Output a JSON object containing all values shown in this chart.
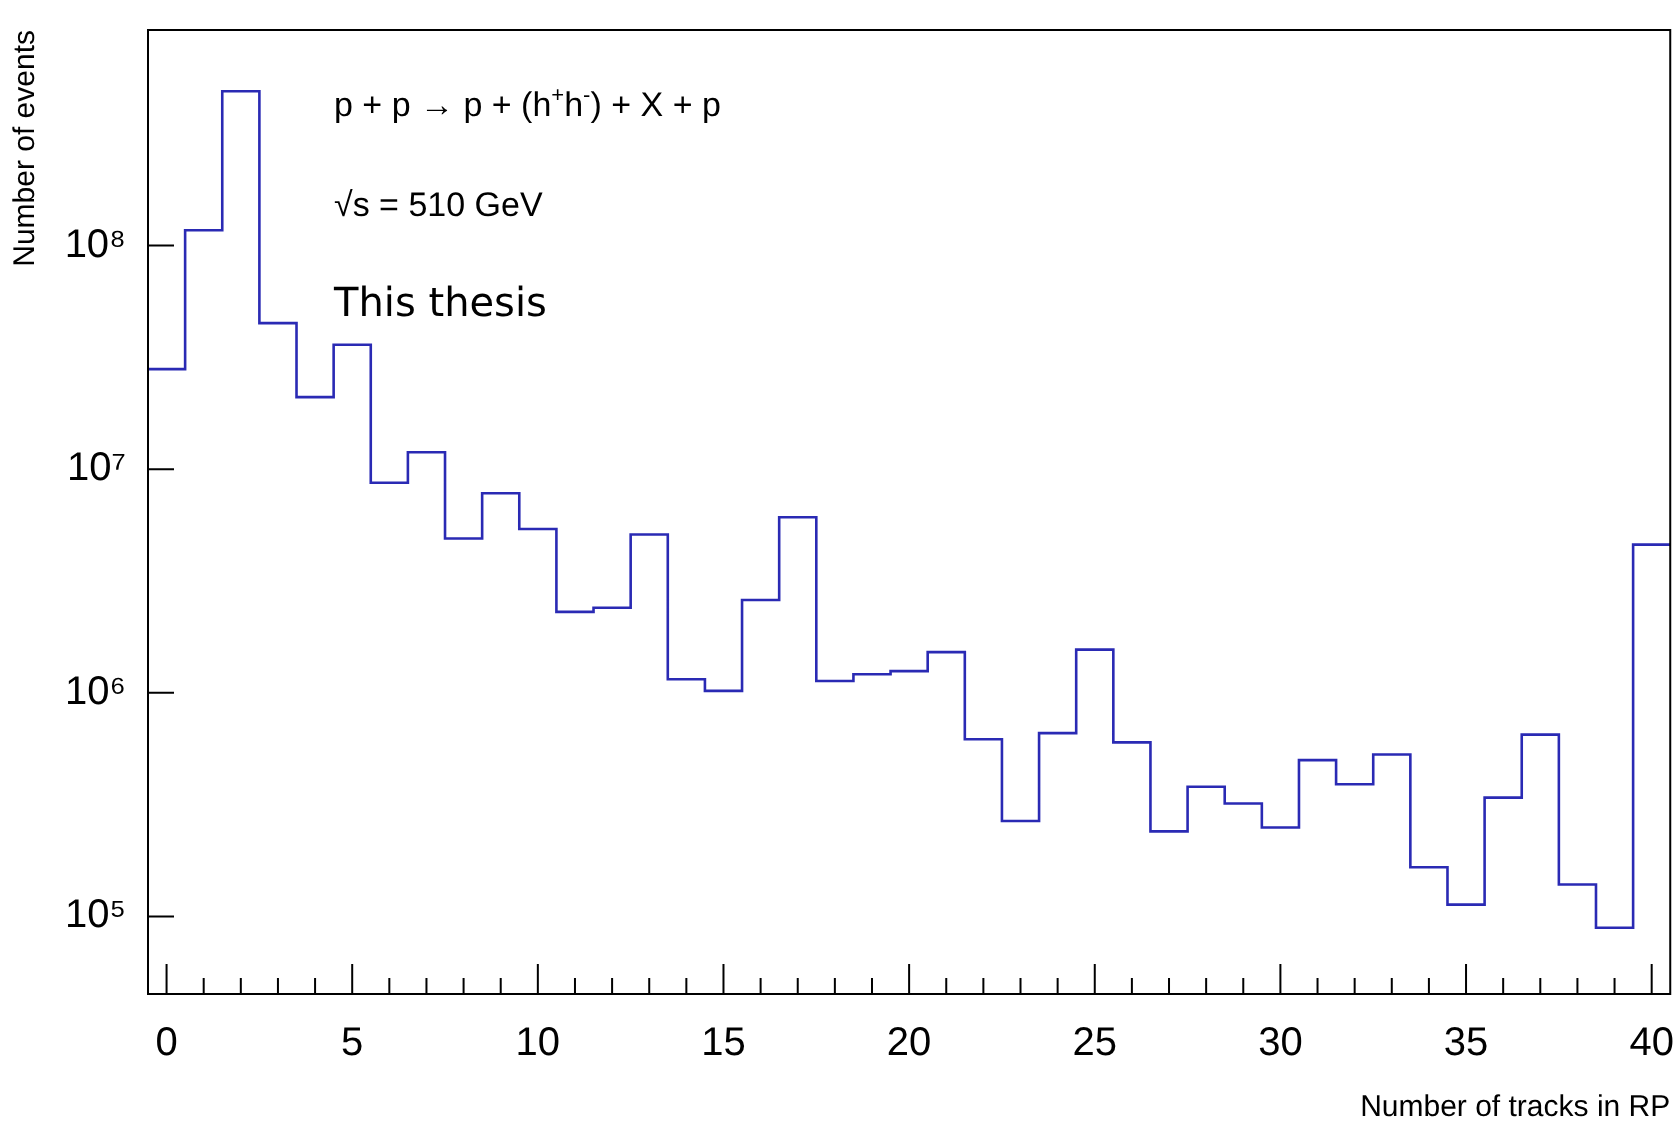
{
  "chart_data": {
    "type": "histogram",
    "xlabel": "Number of tracks in RP",
    "ylabel": "Number of events",
    "annotations": [
      "p + p → p + (h$^{+}$h$^{-}$) + X + p",
      "√s = 510 GeV",
      "This thesis"
    ],
    "bins": [
      -0.5,
      0.5,
      1.5,
      2.5,
      3.5,
      4.5,
      5.5,
      6.5,
      7.5,
      8.5,
      9.5,
      10.5,
      11.5,
      12.5,
      13.5,
      14.5,
      15.5,
      16.5,
      17.5,
      18.5,
      19.5,
      20.5,
      21.5,
      22.5,
      23.5,
      24.5,
      25.5,
      26.5,
      27.5,
      28.5,
      29.5,
      30.5,
      31.5,
      32.5,
      33.5,
      34.5,
      35.5,
      36.5,
      37.5,
      38.5,
      39.5,
      40.5
    ],
    "values": [
      28000000,
      117000000,
      490000000,
      45000000,
      21000000,
      36000000,
      8700000,
      11900000,
      4900000,
      7800000,
      5400000,
      2300000,
      2400000,
      5100000,
      1150000,
      1020000,
      2600000,
      6100000,
      1130000,
      1210000,
      1250000,
      1520000,
      620000,
      267000,
      660000,
      1560000,
      600000,
      240000,
      380000,
      320000,
      250000,
      500000,
      390000,
      530000,
      166000,
      113000,
      340000,
      650000,
      139000,
      89000,
      4600000
    ],
    "color": "#2a2ab4",
    "log": "y",
    "xlim": [
      -0.5,
      40.5
    ],
    "ylim": [
      45000,
      920000000
    ],
    "xticks": [
      0,
      {
        "value": 1,
        "label": null
      },
      {
        "value": 2,
        "label": null
      },
      {
        "value": 3,
        "label": null
      },
      {
        "value": 4,
        "label": null
      },
      5,
      {
        "value": 6,
        "label": null
      },
      {
        "value": 7,
        "label": null
      },
      {
        "value": 8,
        "label": null
      },
      {
        "value": 9,
        "label": null
      },
      10,
      {
        "value": 11,
        "label": null
      },
      {
        "value": 12,
        "label": null
      },
      {
        "value": 13,
        "label": null
      },
      {
        "value": 14,
        "label": null
      },
      15,
      {
        "value": 16,
        "label": null
      },
      {
        "value": 17,
        "label": null
      },
      {
        "value": 18,
        "label": null
      },
      {
        "value": 19,
        "label": null
      },
      20,
      {
        "value": 21,
        "label": null
      },
      {
        "value": 22,
        "label": null
      },
      {
        "value": 23,
        "label": null
      },
      {
        "value": 24,
        "label": null
      },
      25,
      {
        "value": 26,
        "label": null
      },
      {
        "value": 27,
        "label": null
      },
      {
        "value": 28,
        "label": null
      },
      {
        "value": 29,
        "label": null
      },
      30,
      {
        "value": 31,
        "label": null
      },
      {
        "value": 32,
        "label": null
      },
      {
        "value": 33,
        "label": null
      },
      {
        "value": 34,
        "label": null
      },
      35,
      {
        "value": 36,
        "label": null
      },
      {
        "value": 37,
        "label": null
      },
      {
        "value": 38,
        "label": null
      },
      {
        "value": 39,
        "label": null
      },
      40
    ],
    "yticks": [
      {
        "value": 100000,
        "label": "10⁵"
      },
      {
        "value": 1000000,
        "label": "10⁶"
      },
      {
        "value": 10000000,
        "label": "10⁷"
      },
      {
        "value": 100000000,
        "label": "10⁸"
      }
    ],
    "grid": false,
    "legend": false
  }
}
